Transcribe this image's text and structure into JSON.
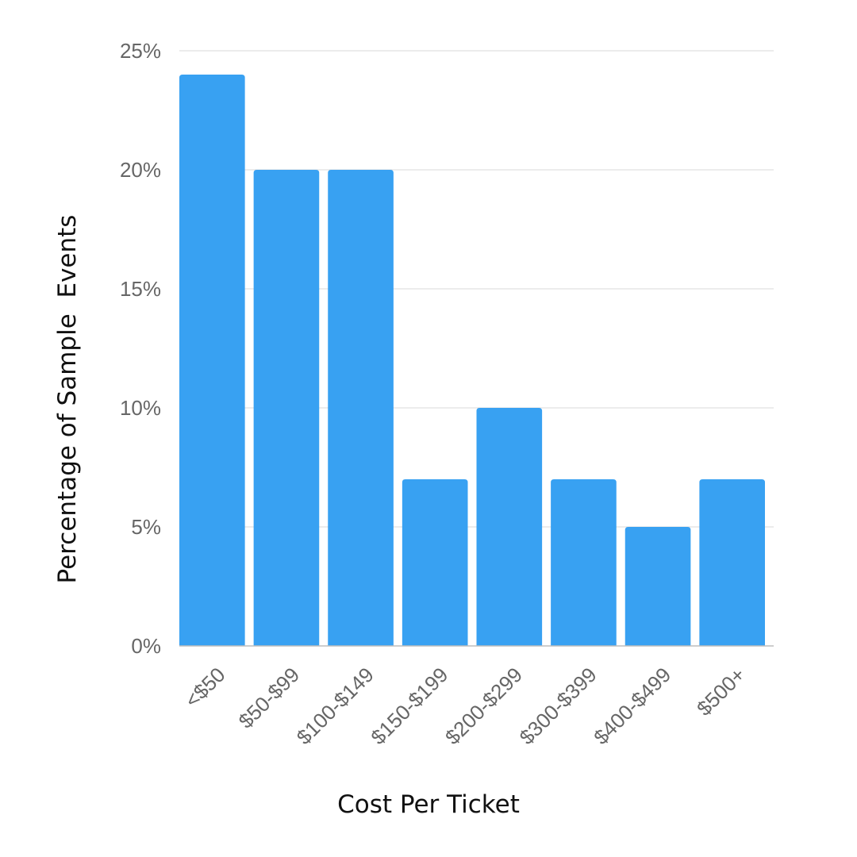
{
  "chart_data": {
    "type": "bar",
    "title": "",
    "xlabel": "Cost Per Ticket",
    "ylabel": "Percentage of Sample  Events",
    "categories": [
      "<$50",
      "$50-$99",
      "$100-$149",
      "$150-$199",
      "$200-$299",
      "$300-$399",
      "$400-$499",
      "$500+"
    ],
    "series": [
      {
        "values": [
          24,
          20,
          20,
          7,
          10,
          7,
          5,
          7
        ]
      }
    ],
    "ylim": [
      0,
      25
    ],
    "yticks": [
      0,
      5,
      10,
      15,
      20,
      25
    ],
    "ytick_labels": [
      "0%",
      "5%",
      "10%",
      "15%",
      "20%",
      "25%"
    ],
    "grid": true,
    "legend": "none",
    "colors": {
      "bar": "#38a1f2",
      "gridline": "#d9d9d9",
      "tick_text": "#666666",
      "axis_title": "#111111"
    }
  }
}
